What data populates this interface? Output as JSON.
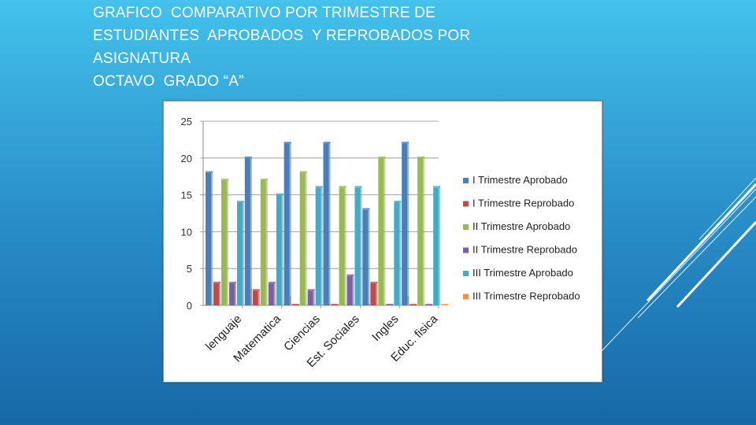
{
  "slide": {
    "title_lines": [
      "GRAFICO  COMPARATIVO POR TRIMESTRE DE",
      "ESTUDIANTES  APROBADOS  Y REPROBADOS POR",
      "ASIGNATURA",
      "OCTAVO  GRADO “A”"
    ]
  },
  "chart_data": {
    "type": "bar",
    "categories": [
      "lenguaje",
      "Matematica",
      "Ciencias",
      "Est. Sociales",
      "Ingles",
      "Educ. fisica"
    ],
    "series": [
      {
        "name": "I Trimestre Aprobado",
        "color": "#4a7ebb",
        "values": [
          18,
          20,
          22,
          22,
          13,
          22
        ]
      },
      {
        "name": "I Trimestre Reprobado",
        "color": "#be4b48",
        "values": [
          3,
          2,
          0,
          0,
          3,
          0
        ]
      },
      {
        "name": "II Trimestre Aprobado",
        "color": "#98b954",
        "values": [
          17,
          17,
          18,
          16,
          20,
          20
        ]
      },
      {
        "name": "II Trimestre Reprobado",
        "color": "#7d60a0",
        "values": [
          3,
          3,
          2,
          4,
          0,
          0
        ]
      },
      {
        "name": "III Trimestre Aprobado",
        "color": "#46aac5",
        "values": [
          14,
          15,
          16,
          16,
          14,
          16
        ]
      },
      {
        "name": "III Trimestre Reprobado",
        "color": "#f69240",
        "values": [
          2,
          1,
          0,
          0,
          1,
          0
        ]
      }
    ],
    "y_ticks": [
      "0",
      "5",
      "10",
      "15",
      "20",
      "25"
    ],
    "ylim": [
      0,
      25
    ],
    "grid": true,
    "legend_position": "right",
    "title": "",
    "xlabel": "",
    "ylabel": ""
  }
}
